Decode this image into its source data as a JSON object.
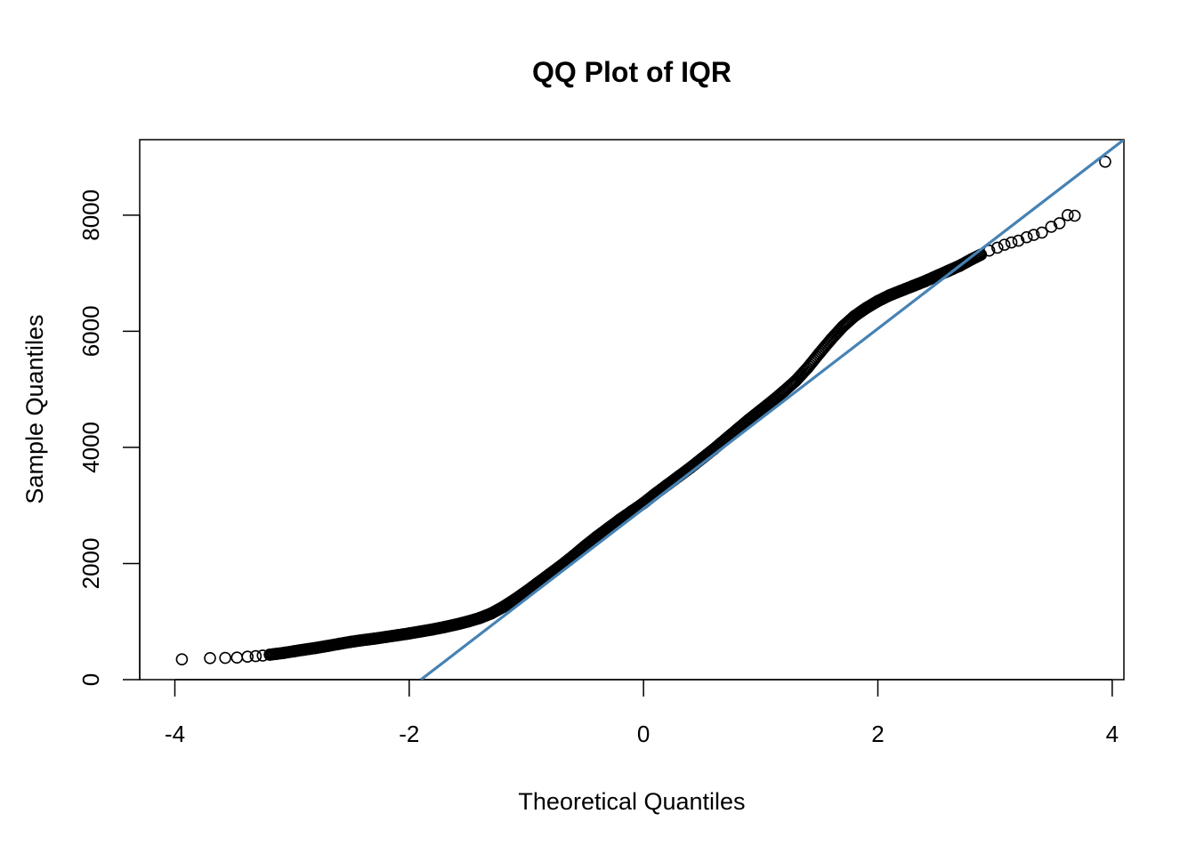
{
  "chart_data": {
    "type": "scatter",
    "title": "QQ Plot of IQR",
    "xlabel": "Theoretical Quantiles",
    "ylabel": "Sample Quantiles",
    "xlim": [
      -4.3,
      4.1
    ],
    "ylim": [
      0,
      9300
    ],
    "x_ticks": [
      -4,
      -2,
      0,
      2,
      4
    ],
    "x_tick_labels": [
      "-4",
      "-2",
      "0",
      "2",
      "4"
    ],
    "y_ticks": [
      0,
      2000,
      4000,
      6000,
      8000
    ],
    "y_tick_labels": [
      "0",
      "2000",
      "4000",
      "6000",
      "8000"
    ],
    "grid": false,
    "legend": "none",
    "colors": {
      "points": "#000000",
      "reference_line": "#4682B4"
    },
    "reference_line": {
      "x": [
        -1.9,
        4.1
      ],
      "y": [
        0,
        9300
      ]
    },
    "series": [
      {
        "points": [
          [
            -3.94,
            350
          ],
          [
            -3.7,
            370
          ],
          [
            -3.57,
            375
          ],
          [
            -3.47,
            380
          ],
          [
            -3.38,
            395
          ],
          [
            -3.31,
            405
          ],
          [
            -3.25,
            415
          ],
          [
            -3.19,
            430
          ],
          [
            -3.13,
            445
          ],
          [
            -3.07,
            460
          ],
          [
            -2.98,
            490
          ],
          [
            -2.9,
            515
          ],
          [
            -2.8,
            545
          ],
          [
            -2.7,
            580
          ],
          [
            -2.6,
            615
          ],
          [
            -2.5,
            650
          ],
          [
            -2.4,
            680
          ],
          [
            -2.3,
            705
          ],
          [
            -2.2,
            735
          ],
          [
            -2.1,
            765
          ],
          [
            -2.0,
            795
          ],
          [
            -1.9,
            830
          ],
          [
            -1.8,
            865
          ],
          [
            -1.7,
            905
          ],
          [
            -1.6,
            950
          ],
          [
            -1.5,
            1000
          ],
          [
            -1.4,
            1060
          ],
          [
            -1.3,
            1140
          ],
          [
            -1.2,
            1250
          ],
          [
            -1.1,
            1380
          ],
          [
            -1.0,
            1520
          ],
          [
            -0.9,
            1670
          ],
          [
            -0.8,
            1820
          ],
          [
            -0.7,
            1970
          ],
          [
            -0.6,
            2130
          ],
          [
            -0.5,
            2300
          ],
          [
            -0.4,
            2460
          ],
          [
            -0.3,
            2610
          ],
          [
            -0.2,
            2760
          ],
          [
            -0.1,
            2900
          ],
          [
            0.0,
            3040
          ],
          [
            0.1,
            3200
          ],
          [
            0.2,
            3350
          ],
          [
            0.3,
            3500
          ],
          [
            0.4,
            3650
          ],
          [
            0.5,
            3810
          ],
          [
            0.6,
            3970
          ],
          [
            0.7,
            4140
          ],
          [
            0.8,
            4310
          ],
          [
            0.9,
            4480
          ],
          [
            1.0,
            4640
          ],
          [
            1.1,
            4800
          ],
          [
            1.2,
            4970
          ],
          [
            1.3,
            5150
          ],
          [
            1.4,
            5370
          ],
          [
            1.5,
            5620
          ],
          [
            1.6,
            5860
          ],
          [
            1.7,
            6080
          ],
          [
            1.8,
            6260
          ],
          [
            1.9,
            6400
          ],
          [
            2.0,
            6520
          ],
          [
            2.1,
            6620
          ],
          [
            2.2,
            6700
          ],
          [
            2.3,
            6780
          ],
          [
            2.4,
            6860
          ],
          [
            2.5,
            6950
          ],
          [
            2.6,
            7040
          ],
          [
            2.7,
            7130
          ],
          [
            2.8,
            7240
          ],
          [
            2.88,
            7320
          ],
          [
            2.95,
            7390
          ],
          [
            3.02,
            7440
          ],
          [
            3.08,
            7490
          ],
          [
            3.14,
            7530
          ],
          [
            3.2,
            7560
          ],
          [
            3.27,
            7620
          ],
          [
            3.33,
            7660
          ],
          [
            3.4,
            7700
          ],
          [
            3.48,
            7800
          ],
          [
            3.55,
            7860
          ],
          [
            3.62,
            8000
          ],
          [
            3.68,
            7990
          ],
          [
            3.94,
            8920
          ]
        ]
      }
    ]
  }
}
